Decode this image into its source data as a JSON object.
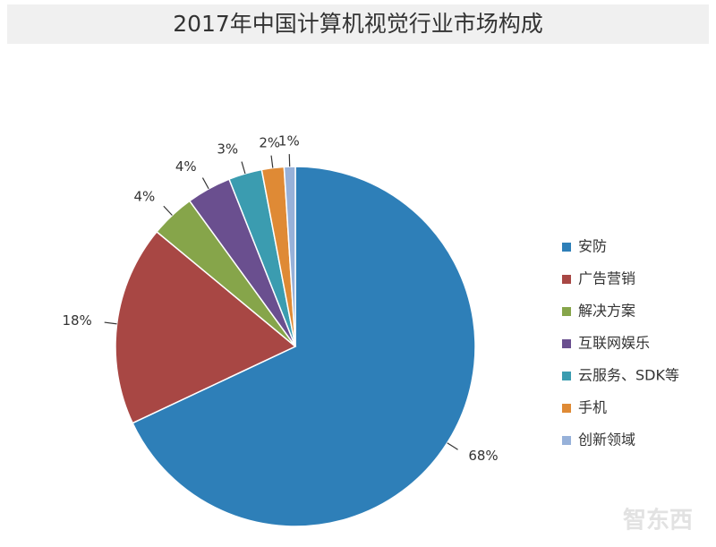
{
  "chart_data": {
    "type": "pie",
    "title": "2017年中国计算机视觉行业市场构成",
    "categories": [
      "安防",
      "广告营销",
      "解决方案",
      "互联网娱乐",
      "云服务、SDK等",
      "手机",
      "创新领域"
    ],
    "values": [
      68,
      18,
      4,
      4,
      3,
      2,
      1
    ],
    "value_labels": [
      "68%",
      "18%",
      "4%",
      "4%",
      "3%",
      "2%",
      "1%"
    ],
    "colors": [
      "#2e7fb8",
      "#a84744",
      "#86a54a",
      "#6a4f8f",
      "#3b9cb0",
      "#df8a35",
      "#97b1d9"
    ],
    "legend": "right",
    "watermark": "智东西"
  }
}
